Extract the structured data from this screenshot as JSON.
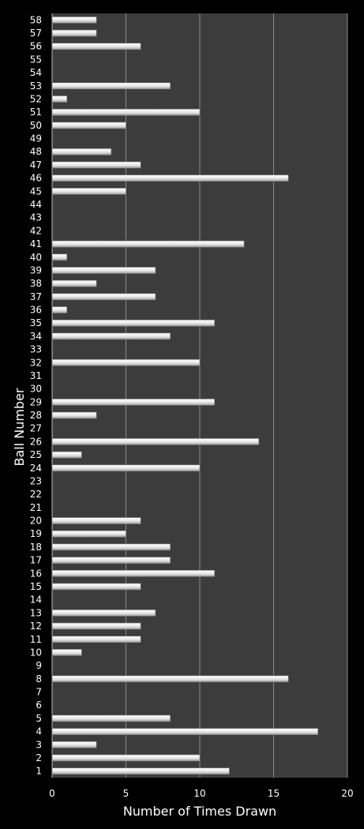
{
  "chart_data": {
    "type": "bar",
    "orientation": "horizontal",
    "xlabel": "Number of Times Drawn",
    "ylabel": "Ball Number",
    "xlim": [
      0,
      20
    ],
    "x_ticks": [
      0,
      5,
      10,
      15,
      20
    ],
    "grid": true,
    "colors": {
      "background": "#000000",
      "plot_area": "#3c3c3c",
      "gridline": "#8a8a8a",
      "bar": "#e8e8e8",
      "text": "#ffffff"
    },
    "categories": [
      "1",
      "2",
      "3",
      "4",
      "5",
      "6",
      "7",
      "8",
      "9",
      "10",
      "11",
      "12",
      "13",
      "14",
      "15",
      "16",
      "17",
      "18",
      "19",
      "20",
      "21",
      "22",
      "23",
      "24",
      "25",
      "26",
      "27",
      "28",
      "29",
      "30",
      "31",
      "32",
      "33",
      "34",
      "35",
      "36",
      "37",
      "38",
      "39",
      "40",
      "41",
      "42",
      "43",
      "44",
      "45",
      "46",
      "47",
      "48",
      "49",
      "50",
      "51",
      "52",
      "53",
      "54",
      "55",
      "56",
      "57",
      "58"
    ],
    "values": [
      12,
      10,
      3,
      18,
      8,
      0,
      0,
      16,
      0,
      2,
      6,
      6,
      7,
      0,
      6,
      11,
      8,
      8,
      5,
      6,
      0,
      0,
      0,
      10,
      2,
      14,
      0,
      3,
      11,
      0,
      0,
      10,
      0,
      8,
      11,
      1,
      7,
      3,
      7,
      1,
      13,
      0,
      0,
      0,
      5,
      16,
      6,
      4,
      0,
      5,
      10,
      1,
      8,
      0,
      0,
      6,
      3,
      3
    ]
  }
}
